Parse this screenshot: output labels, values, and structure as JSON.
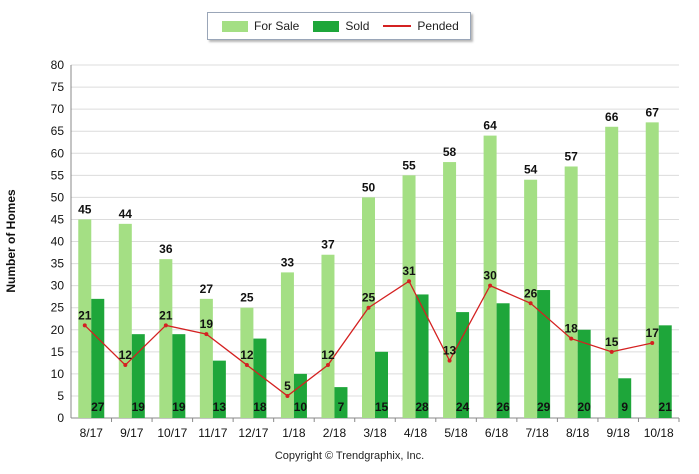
{
  "legend": {
    "for_sale": "For Sale",
    "sold": "Sold",
    "pended": "Pended"
  },
  "colors": {
    "for_sale": "#a4df84",
    "sold": "#1ea63a",
    "pended": "#d42121",
    "grid": "#dcdcdc"
  },
  "footer": {
    "copyright": "Copyright © Trendgraphix, Inc."
  },
  "chart_data": {
    "type": "bar",
    "ylabel": "Number of Homes",
    "xlabel": "",
    "ylim": [
      0,
      80
    ],
    "yticks": [
      0,
      5,
      10,
      15,
      20,
      25,
      30,
      35,
      40,
      45,
      50,
      55,
      60,
      65,
      70,
      75,
      80
    ],
    "grid": true,
    "legend_position": "top-center",
    "categories": [
      "8/17",
      "9/17",
      "10/17",
      "11/17",
      "12/17",
      "1/18",
      "2/18",
      "3/18",
      "4/18",
      "5/18",
      "6/18",
      "7/18",
      "8/18",
      "9/18",
      "10/18"
    ],
    "series": [
      {
        "name": "For Sale",
        "type": "bar",
        "values": [
          45,
          44,
          36,
          27,
          25,
          33,
          37,
          50,
          55,
          58,
          64,
          54,
          57,
          66,
          67
        ]
      },
      {
        "name": "Sold",
        "type": "bar",
        "values": [
          27,
          19,
          19,
          13,
          18,
          10,
          7,
          15,
          28,
          24,
          26,
          29,
          20,
          9,
          21
        ]
      },
      {
        "name": "Pended",
        "type": "line",
        "values": [
          21,
          12,
          21,
          19,
          12,
          5,
          12,
          25,
          31,
          13,
          30,
          26,
          18,
          15,
          17
        ]
      }
    ]
  }
}
